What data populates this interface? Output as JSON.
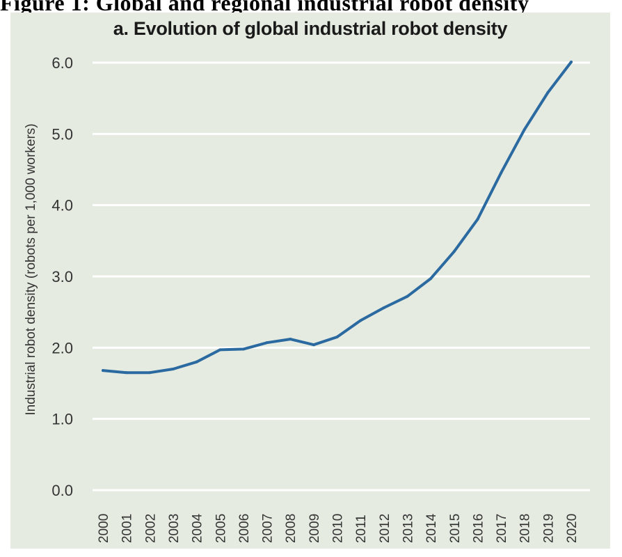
{
  "header": {
    "partial_title": "Figure 1: Global and regional industrial robot density"
  },
  "chart_data": {
    "type": "line",
    "title": "a. Evolution of global industrial robot density",
    "xlabel": "",
    "ylabel": "Industrial robot density (robots per 1,000 workers)",
    "ylim": [
      0,
      6
    ],
    "yticks": [
      "0.0",
      "1.0",
      "2.0",
      "3.0",
      "4.0",
      "5.0",
      "6.0"
    ],
    "grid": true,
    "series_color": "#2b6aa0",
    "panel_color": "#e6ebe1",
    "categories": [
      "2000",
      "2001",
      "2002",
      "2003",
      "2004",
      "2005",
      "2006",
      "2007",
      "2008",
      "2009",
      "2010",
      "2011",
      "2012",
      "2013",
      "2014",
      "2015",
      "2016",
      "2017",
      "2018",
      "2019",
      "2020"
    ],
    "series": [
      {
        "name": "Global industrial robot density",
        "values": [
          1.68,
          1.65,
          1.65,
          1.7,
          1.8,
          1.97,
          1.98,
          2.07,
          2.12,
          2.04,
          2.15,
          2.38,
          2.56,
          2.72,
          2.97,
          3.35,
          3.8,
          4.45,
          5.06,
          5.58,
          6.01
        ]
      }
    ]
  }
}
